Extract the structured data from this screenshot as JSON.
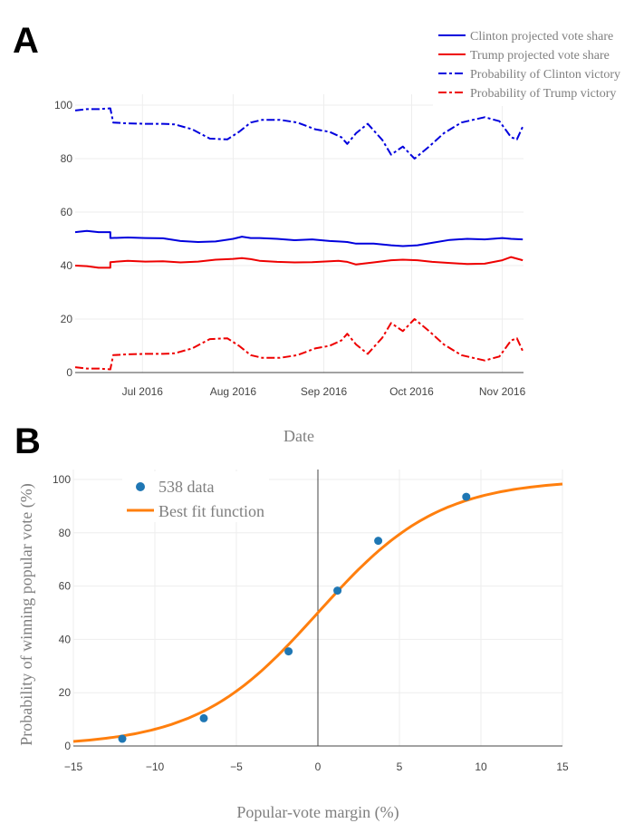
{
  "panels": {
    "a_label": "A",
    "b_label": "B"
  },
  "colors": {
    "clinton": "#0000dd",
    "trump": "#ee0000",
    "scatter": "#1f77b4",
    "fit": "#ff7f0e",
    "grid": "#eeeeee"
  },
  "chart_data": [
    {
      "type": "line",
      "xlabel": "Date",
      "ylabel": "",
      "xlim": [
        "2016-06-08",
        "2016-11-08"
      ],
      "ylim": [
        0,
        100
      ],
      "x_ticks": [
        {
          "date": "2016-07-01",
          "label": "Jul 2016"
        },
        {
          "date": "2016-08-01",
          "label": "Aug 2016"
        },
        {
          "date": "2016-09-01",
          "label": "Sep 2016"
        },
        {
          "date": "2016-10-01",
          "label": "Oct 2016"
        },
        {
          "date": "2016-11-01",
          "label": "Nov 2016"
        }
      ],
      "y_ticks": [
        0,
        20,
        40,
        60,
        80,
        100
      ],
      "legend_position": "top-right",
      "series": [
        {
          "name": "Clinton projected vote share",
          "color": "#0000dd",
          "dash": "solid",
          "x": [
            "2016-06-08",
            "2016-06-12",
            "2016-06-16",
            "2016-06-20",
            "2016-06-20",
            "2016-06-26",
            "2016-07-02",
            "2016-07-08",
            "2016-07-14",
            "2016-07-20",
            "2016-07-26",
            "2016-08-01",
            "2016-08-04",
            "2016-08-07",
            "2016-08-10",
            "2016-08-16",
            "2016-08-22",
            "2016-08-28",
            "2016-09-03",
            "2016-09-06",
            "2016-09-09",
            "2016-09-12",
            "2016-09-18",
            "2016-09-24",
            "2016-09-28",
            "2016-10-03",
            "2016-10-08",
            "2016-10-14",
            "2016-10-20",
            "2016-10-26",
            "2016-11-01",
            "2016-11-04",
            "2016-11-08"
          ],
          "y": [
            52.5,
            53,
            52.5,
            52.5,
            50.3,
            50.5,
            50.3,
            50.2,
            49.2,
            48.8,
            49,
            50,
            50.8,
            50.3,
            50.3,
            50,
            49.5,
            49.8,
            49.2,
            49,
            48.8,
            48.2,
            48.2,
            47.6,
            47.3,
            47.6,
            48.5,
            49.6,
            50,
            49.8,
            50.3,
            50,
            49.8
          ]
        },
        {
          "name": "Trump projected vote share",
          "color": "#ee0000",
          "dash": "solid",
          "x": [
            "2016-06-08",
            "2016-06-12",
            "2016-06-16",
            "2016-06-20",
            "2016-06-20",
            "2016-06-26",
            "2016-07-02",
            "2016-07-08",
            "2016-07-14",
            "2016-07-20",
            "2016-07-26",
            "2016-08-01",
            "2016-08-04",
            "2016-08-07",
            "2016-08-10",
            "2016-08-16",
            "2016-08-22",
            "2016-08-28",
            "2016-09-03",
            "2016-09-06",
            "2016-09-09",
            "2016-09-12",
            "2016-09-18",
            "2016-09-24",
            "2016-09-28",
            "2016-10-03",
            "2016-10-08",
            "2016-10-14",
            "2016-10-20",
            "2016-10-26",
            "2016-11-01",
            "2016-11-04",
            "2016-11-08"
          ],
          "y": [
            40,
            39.8,
            39.2,
            39.2,
            41.3,
            41.8,
            41.5,
            41.6,
            41.2,
            41.5,
            42.2,
            42.5,
            42.8,
            42.4,
            41.8,
            41.4,
            41.2,
            41.3,
            41.6,
            41.8,
            41.4,
            40.4,
            41.2,
            42,
            42.2,
            42,
            41.4,
            41,
            40.6,
            40.7,
            42,
            43.2,
            42
          ]
        },
        {
          "name": "Probability of Clinton victory",
          "color": "#0000dd",
          "dash": "dashdot",
          "x": [
            "2016-06-08",
            "2016-06-12",
            "2016-06-16",
            "2016-06-20",
            "2016-06-21",
            "2016-06-26",
            "2016-07-02",
            "2016-07-08",
            "2016-07-12",
            "2016-07-18",
            "2016-07-24",
            "2016-07-30",
            "2016-08-03",
            "2016-08-07",
            "2016-08-11",
            "2016-08-17",
            "2016-08-23",
            "2016-08-29",
            "2016-09-03",
            "2016-09-07",
            "2016-09-09",
            "2016-09-12",
            "2016-09-16",
            "2016-09-21",
            "2016-09-24",
            "2016-09-28",
            "2016-10-02",
            "2016-10-07",
            "2016-10-12",
            "2016-10-18",
            "2016-10-22",
            "2016-10-26",
            "2016-10-31",
            "2016-11-04",
            "2016-11-06",
            "2016-11-08"
          ],
          "y": [
            98,
            98.5,
            98.5,
            98.8,
            93.5,
            93.2,
            93,
            93,
            92.8,
            91,
            87.5,
            87.2,
            90,
            93.5,
            94.5,
            94.5,
            93.5,
            91,
            90,
            88,
            85.5,
            89.5,
            93,
            87,
            81.5,
            84.5,
            80,
            84.5,
            89.5,
            93.5,
            94.5,
            95.5,
            94,
            88,
            87.2,
            92
          ]
        },
        {
          "name": "Probability of Trump victory",
          "color": "#ee0000",
          "dash": "dashdot",
          "x": [
            "2016-06-08",
            "2016-06-12",
            "2016-06-16",
            "2016-06-20",
            "2016-06-21",
            "2016-06-26",
            "2016-07-02",
            "2016-07-08",
            "2016-07-12",
            "2016-07-18",
            "2016-07-24",
            "2016-07-30",
            "2016-08-03",
            "2016-08-07",
            "2016-08-11",
            "2016-08-17",
            "2016-08-23",
            "2016-08-29",
            "2016-09-03",
            "2016-09-07",
            "2016-09-09",
            "2016-09-12",
            "2016-09-16",
            "2016-09-21",
            "2016-09-24",
            "2016-09-28",
            "2016-10-02",
            "2016-10-07",
            "2016-10-12",
            "2016-10-18",
            "2016-10-22",
            "2016-10-26",
            "2016-10-31",
            "2016-11-04",
            "2016-11-06",
            "2016-11-08"
          ],
          "y": [
            2,
            1.5,
            1.5,
            1.2,
            6.5,
            6.8,
            7,
            7,
            7.2,
            9,
            12.5,
            12.8,
            10,
            6.5,
            5.5,
            5.5,
            6.5,
            9,
            10,
            12,
            14.5,
            10.5,
            7,
            13,
            18.5,
            15.5,
            20,
            15.5,
            10.5,
            6.5,
            5.5,
            4.5,
            6,
            12,
            12.8,
            8
          ]
        }
      ]
    },
    {
      "type": "scatter",
      "xlabel": "Popular-vote margin (%)",
      "ylabel": "Probability of winning popular vote (%)",
      "xlim": [
        -15,
        15
      ],
      "ylim": [
        0,
        100
      ],
      "x_ticks": [
        -15,
        -10,
        -5,
        0,
        5,
        10,
        15
      ],
      "x_tick_labels": [
        "−15",
        "−10",
        "−5",
        "0",
        "5",
        "10",
        "15"
      ],
      "y_ticks": [
        0,
        20,
        40,
        60,
        80,
        100
      ],
      "legend_position": "top-left",
      "series": [
        {
          "name": "538 data",
          "color": "#1f77b4",
          "mode": "markers",
          "x": [
            -12,
            -7,
            -1.8,
            1.2,
            3.7,
            9.1
          ],
          "y": [
            2.7,
            10.4,
            35.5,
            58.3,
            77,
            93.5
          ]
        },
        {
          "name": "Best fit function",
          "color": "#ff7f0e",
          "mode": "line",
          "function": "logistic",
          "scale_pct": 3.7
        }
      ]
    }
  ]
}
